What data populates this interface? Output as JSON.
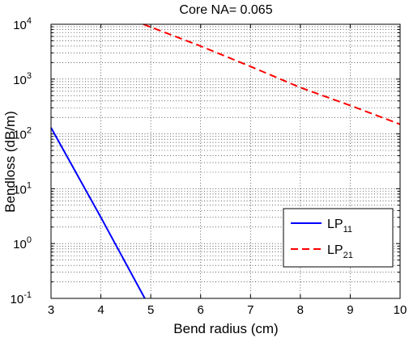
{
  "chart_data": {
    "type": "line",
    "title": "Core NA= 0.065",
    "xlabel": "Bend radius (cm)",
    "ylabel": "Bendloss (dB/m)",
    "xlim": [
      3,
      10
    ],
    "ylim": [
      0.1,
      10000
    ],
    "yscale": "log",
    "grid": "dotted major and minor",
    "legend_position": "bottom-right",
    "x_ticks": [
      "3",
      "4",
      "5",
      "6",
      "7",
      "8",
      "9",
      "10"
    ],
    "y_ticks": [
      {
        "base": "10",
        "exp": "-1"
      },
      {
        "base": "10",
        "exp": "0"
      },
      {
        "base": "10",
        "exp": "1"
      },
      {
        "base": "10",
        "exp": "2"
      },
      {
        "base": "10",
        "exp": "3"
      },
      {
        "base": "10",
        "exp": "4"
      }
    ],
    "series": [
      {
        "name": "LP",
        "name_sub": "11",
        "color": "#0000ff",
        "style": "solid",
        "points": [
          [
            3.0,
            130
          ],
          [
            4.0,
            3.0
          ],
          [
            4.88,
            0.1
          ]
        ]
      },
      {
        "name": "LP",
        "name_sub": "21",
        "color": "#ff0000",
        "style": "dashed",
        "points": [
          [
            4.85,
            10000
          ],
          [
            6.0,
            4000
          ],
          [
            7.0,
            1700
          ],
          [
            8.0,
            700
          ],
          [
            9.0,
            330
          ],
          [
            10.0,
            150
          ]
        ]
      }
    ]
  }
}
